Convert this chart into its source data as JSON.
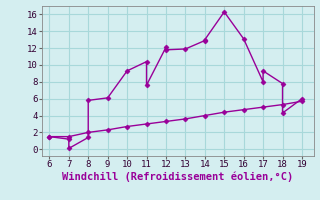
{
  "x_windchill": [
    6,
    7,
    7,
    8,
    8,
    9,
    10,
    11,
    11,
    12,
    12,
    13,
    14,
    14,
    15,
    16,
    17,
    17,
    18,
    18,
    19
  ],
  "y_windchill": [
    1.5,
    1.2,
    0.1,
    1.4,
    5.8,
    6.1,
    9.3,
    10.4,
    7.6,
    12.1,
    11.8,
    11.9,
    12.9,
    13.0,
    16.3,
    13.1,
    8.0,
    9.3,
    7.8,
    4.3,
    6.0
  ],
  "x_temp": [
    6,
    7,
    8,
    9,
    10,
    11,
    12,
    13,
    14,
    15,
    16,
    17,
    18,
    19
  ],
  "y_temp": [
    1.5,
    1.5,
    2.0,
    2.3,
    2.7,
    3.0,
    3.3,
    3.6,
    4.0,
    4.4,
    4.7,
    5.0,
    5.3,
    5.7
  ],
  "line_color": "#990099",
  "bg_color": "#d4eef0",
  "grid_color": "#a8d8da",
  "xlabel": "Windchill (Refroidissement éolien,°C)",
  "xlim": [
    5.6,
    19.6
  ],
  "ylim": [
    -0.8,
    17.0
  ],
  "xticks": [
    6,
    7,
    8,
    9,
    10,
    11,
    12,
    13,
    14,
    15,
    16,
    17,
    18,
    19
  ],
  "yticks": [
    0,
    2,
    4,
    6,
    8,
    10,
    12,
    14,
    16
  ],
  "marker": "D",
  "markersize": 2.5,
  "linewidth": 1.0,
  "xlabel_fontsize": 7.5,
  "tick_fontsize": 6.5
}
